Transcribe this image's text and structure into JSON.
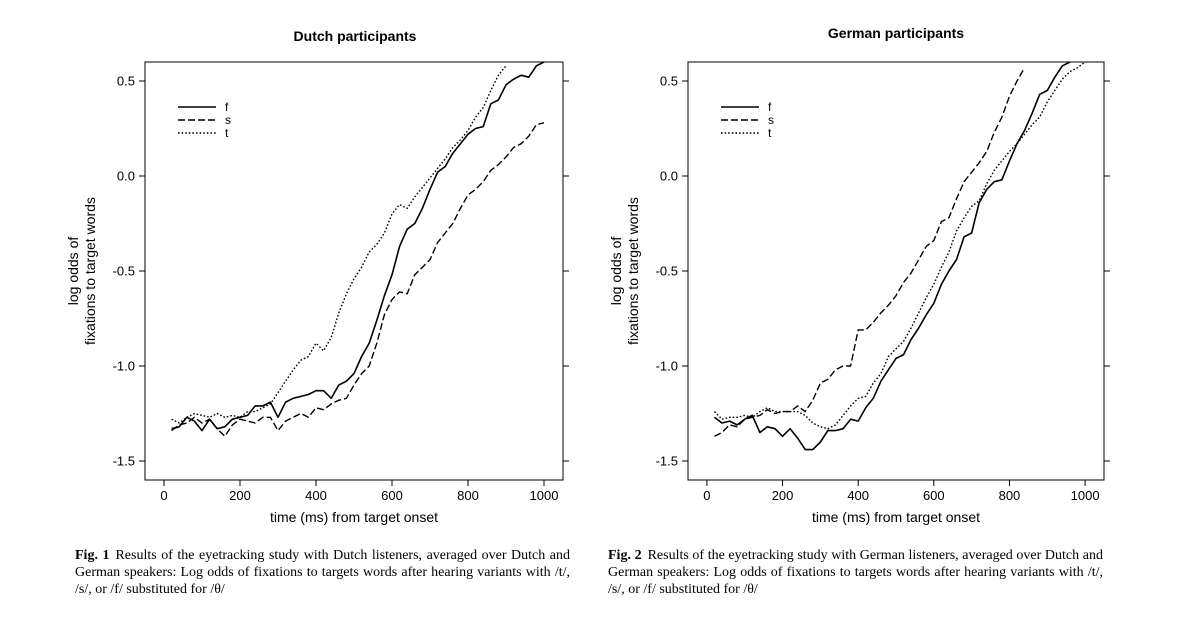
{
  "chart_data": [
    {
      "type": "line",
      "title": "Dutch participants",
      "xlabel": "time (ms) from target onset",
      "ylabel_lines": [
        "log odds of",
        "fixations to target words"
      ],
      "xlim": [
        -50,
        1050
      ],
      "ylim": [
        -1.6,
        0.6
      ],
      "xticks": [
        0,
        200,
        400,
        600,
        800,
        1000
      ],
      "xtick_labels": [
        "0",
        "200",
        "400",
        "600",
        "800",
        "1000"
      ],
      "yticks": [
        0.5,
        0.0,
        -0.5,
        -1.0,
        -1.5
      ],
      "ytick_labels": [
        "0.5",
        "0.0",
        "-0.5",
        "-1.0",
        "-1.5"
      ],
      "legend_position": "top-left",
      "series": [
        {
          "name": "f",
          "dash": "solid",
          "width": 1.6,
          "x": [
            20,
            40,
            60,
            80,
            100,
            120,
            140,
            160,
            180,
            200,
            220,
            240,
            260,
            280,
            300,
            320,
            340,
            360,
            380,
            400,
            420,
            440,
            460,
            480,
            500,
            520,
            540,
            560,
            580,
            600,
            620,
            640,
            660,
            680,
            700,
            720,
            740,
            760,
            780,
            800,
            820,
            840,
            860,
            880,
            900,
            920,
            940,
            960,
            980,
            1000
          ],
          "y": [
            -1.33,
            -1.32,
            -1.27,
            -1.29,
            -1.34,
            -1.28,
            -1.33,
            -1.32,
            -1.28,
            -1.27,
            -1.26,
            -1.21,
            -1.21,
            -1.19,
            -1.27,
            -1.19,
            -1.17,
            -1.16,
            -1.15,
            -1.13,
            -1.13,
            -1.17,
            -1.1,
            -1.08,
            -1.04,
            -0.95,
            -0.88,
            -0.76,
            -0.63,
            -0.52,
            -0.37,
            -0.28,
            -0.25,
            -0.17,
            -0.07,
            0.02,
            0.05,
            0.12,
            0.17,
            0.22,
            0.25,
            0.26,
            0.38,
            0.4,
            0.48,
            0.51,
            0.53,
            0.52,
            0.58,
            0.6
          ]
        },
        {
          "name": "s",
          "dash": "dashed",
          "width": 1.4,
          "x": [
            20,
            40,
            60,
            80,
            100,
            120,
            140,
            160,
            180,
            200,
            220,
            240,
            260,
            280,
            300,
            320,
            340,
            360,
            380,
            400,
            420,
            440,
            460,
            480,
            500,
            520,
            540,
            560,
            580,
            600,
            620,
            640,
            660,
            680,
            700,
            720,
            740,
            760,
            780,
            800,
            820,
            840,
            860,
            880,
            900,
            920,
            940,
            960,
            980,
            1000
          ],
          "y": [
            -1.34,
            -1.31,
            -1.3,
            -1.27,
            -1.3,
            -1.28,
            -1.33,
            -1.37,
            -1.31,
            -1.28,
            -1.29,
            -1.3,
            -1.27,
            -1.27,
            -1.34,
            -1.29,
            -1.27,
            -1.25,
            -1.27,
            -1.22,
            -1.23,
            -1.2,
            -1.18,
            -1.17,
            -1.1,
            -1.04,
            -1.0,
            -0.88,
            -0.73,
            -0.65,
            -0.61,
            -0.62,
            -0.52,
            -0.48,
            -0.44,
            -0.35,
            -0.3,
            -0.25,
            -0.17,
            -0.1,
            -0.07,
            -0.03,
            0.03,
            0.06,
            0.1,
            0.15,
            0.17,
            0.21,
            0.27,
            0.28
          ]
        },
        {
          "name": "t",
          "dash": "dotted",
          "width": 1.4,
          "x": [
            20,
            40,
            60,
            80,
            100,
            120,
            140,
            160,
            180,
            200,
            220,
            240,
            260,
            280,
            300,
            320,
            340,
            360,
            380,
            400,
            420,
            440,
            460,
            480,
            500,
            520,
            540,
            560,
            580,
            600,
            620,
            640,
            660,
            680,
            700,
            720,
            740,
            760,
            780,
            800,
            820,
            840,
            860,
            880,
            900
          ],
          "y": [
            -1.28,
            -1.3,
            -1.27,
            -1.25,
            -1.26,
            -1.27,
            -1.25,
            -1.27,
            -1.26,
            -1.27,
            -1.24,
            -1.24,
            -1.22,
            -1.2,
            -1.14,
            -1.08,
            -1.02,
            -0.97,
            -0.95,
            -0.88,
            -0.92,
            -0.85,
            -0.72,
            -0.62,
            -0.54,
            -0.48,
            -0.4,
            -0.36,
            -0.3,
            -0.2,
            -0.15,
            -0.17,
            -0.11,
            -0.06,
            -0.01,
            0.04,
            0.09,
            0.15,
            0.19,
            0.24,
            0.31,
            0.36,
            0.45,
            0.53,
            0.58
          ]
        }
      ]
    },
    {
      "type": "line",
      "title": "German participants",
      "xlabel": "time (ms) from target onset",
      "ylabel_lines": [
        "log odds of",
        "fixations to target words"
      ],
      "xlim": [
        -50,
        1050
      ],
      "ylim": [
        -1.6,
        0.6
      ],
      "xticks": [
        0,
        200,
        400,
        600,
        800,
        1000
      ],
      "xtick_labels": [
        "0",
        "200",
        "400",
        "600",
        "800",
        "1000"
      ],
      "yticks": [
        0.5,
        0.0,
        -0.5,
        -1.0,
        -1.5
      ],
      "ytick_labels": [
        "0.5",
        "0.0",
        "-0.5",
        "-1.0",
        "-1.5"
      ],
      "legend_position": "top-left",
      "series": [
        {
          "name": "f",
          "dash": "solid",
          "width": 1.6,
          "x": [
            20,
            40,
            60,
            80,
            100,
            120,
            140,
            160,
            180,
            200,
            220,
            240,
            260,
            280,
            300,
            320,
            340,
            360,
            380,
            400,
            420,
            440,
            460,
            480,
            500,
            520,
            540,
            560,
            580,
            600,
            620,
            640,
            660,
            680,
            700,
            720,
            740,
            760,
            780,
            800,
            820,
            840,
            860,
            880,
            900,
            920,
            940,
            960
          ],
          "y": [
            -1.27,
            -1.3,
            -1.29,
            -1.31,
            -1.28,
            -1.26,
            -1.35,
            -1.32,
            -1.33,
            -1.37,
            -1.33,
            -1.38,
            -1.44,
            -1.44,
            -1.4,
            -1.34,
            -1.34,
            -1.33,
            -1.28,
            -1.29,
            -1.22,
            -1.17,
            -1.08,
            -1.02,
            -0.96,
            -0.94,
            -0.86,
            -0.8,
            -0.73,
            -0.67,
            -0.57,
            -0.5,
            -0.44,
            -0.32,
            -0.3,
            -0.14,
            -0.07,
            -0.03,
            -0.02,
            0.08,
            0.17,
            0.24,
            0.33,
            0.43,
            0.45,
            0.52,
            0.58,
            0.6
          ]
        },
        {
          "name": "s",
          "dash": "dashed",
          "width": 1.4,
          "x": [
            20,
            40,
            60,
            80,
            100,
            120,
            140,
            160,
            180,
            200,
            220,
            240,
            260,
            280,
            300,
            320,
            340,
            360,
            380,
            400,
            420,
            440,
            460,
            480,
            500,
            520,
            540,
            560,
            580,
            600,
            620,
            640,
            660,
            680,
            700,
            720,
            740,
            760,
            780,
            800,
            820,
            840
          ],
          "y": [
            -1.37,
            -1.35,
            -1.31,
            -1.32,
            -1.28,
            -1.27,
            -1.26,
            -1.23,
            -1.25,
            -1.24,
            -1.24,
            -1.21,
            -1.24,
            -1.18,
            -1.09,
            -1.07,
            -1.02,
            -1.0,
            -1.0,
            -0.81,
            -0.81,
            -0.77,
            -0.72,
            -0.68,
            -0.63,
            -0.56,
            -0.51,
            -0.44,
            -0.37,
            -0.34,
            -0.24,
            -0.22,
            -0.12,
            -0.03,
            0.02,
            0.07,
            0.13,
            0.23,
            0.31,
            0.42,
            0.5,
            0.57
          ]
        },
        {
          "name": "t",
          "dash": "dotted",
          "width": 1.4,
          "x": [
            20,
            40,
            60,
            80,
            100,
            120,
            140,
            160,
            180,
            200,
            220,
            240,
            260,
            280,
            300,
            320,
            340,
            360,
            380,
            400,
            420,
            440,
            460,
            480,
            500,
            520,
            540,
            560,
            580,
            600,
            620,
            640,
            660,
            680,
            700,
            720,
            740,
            760,
            780,
            800,
            820,
            840,
            860,
            880,
            900,
            920,
            940,
            960,
            980,
            1000
          ],
          "y": [
            -1.24,
            -1.28,
            -1.27,
            -1.27,
            -1.26,
            -1.27,
            -1.24,
            -1.22,
            -1.24,
            -1.24,
            -1.24,
            -1.24,
            -1.26,
            -1.3,
            -1.32,
            -1.33,
            -1.31,
            -1.26,
            -1.21,
            -1.17,
            -1.16,
            -1.09,
            -1.04,
            -0.95,
            -0.91,
            -0.87,
            -0.8,
            -0.72,
            -0.64,
            -0.57,
            -0.48,
            -0.4,
            -0.29,
            -0.22,
            -0.16,
            -0.13,
            -0.04,
            0.03,
            0.08,
            0.13,
            0.17,
            0.22,
            0.27,
            0.31,
            0.39,
            0.45,
            0.51,
            0.55,
            0.57,
            0.6
          ]
        }
      ]
    }
  ],
  "captions": [
    {
      "fig": "Fig. 1",
      "text": "Results of the eyetracking study with Dutch listeners, averaged over Dutch and German speakers: Log odds of fixations to targets words after hearing variants with /t/, /s/, or /f/ substituted for /θ/"
    },
    {
      "fig": "Fig. 2",
      "text": "Results of the eyetracking study with German listeners, averaged over Dutch and German speakers: Log odds of fixations to targets words after hearing variants with /t/, /s/, or /f/ substituted for /θ/"
    }
  ]
}
